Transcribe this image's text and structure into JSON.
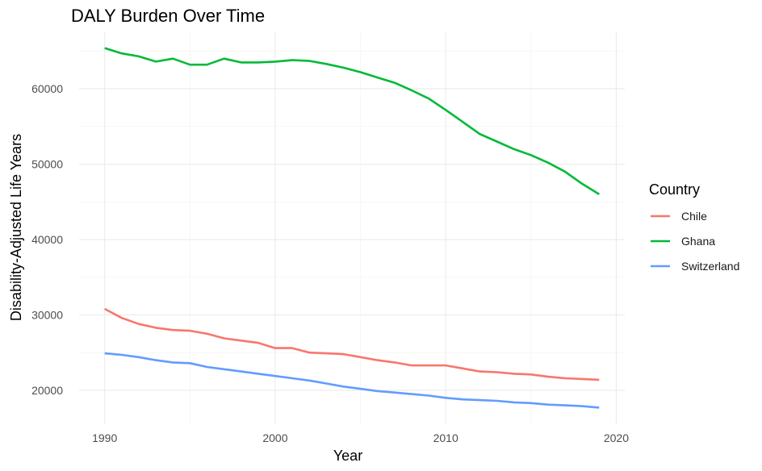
{
  "chart_data": {
    "type": "line",
    "title": "DALY Burden Over Time",
    "xlabel": "Year",
    "ylabel": "Disability-Adjusted Life Years",
    "xlim": [
      1988.5,
      2020.5
    ],
    "ylim": [
      15500,
      67500
    ],
    "x_ticks": [
      1990,
      2000,
      2010,
      2020
    ],
    "x_minor_ticks": [
      1995,
      2005,
      2015
    ],
    "y_ticks": [
      20000,
      30000,
      40000,
      50000,
      60000
    ],
    "y_minor_ticks": [
      25000,
      35000,
      45000,
      55000,
      65000
    ],
    "x_tick_labels": [
      "1990",
      "2000",
      "2010",
      "2020"
    ],
    "y_tick_labels": [
      "20000",
      "30000",
      "40000",
      "50000",
      "60000"
    ],
    "grid": true,
    "legend": {
      "title": "Country",
      "placement": "right"
    },
    "x": [
      1990,
      1991,
      1992,
      1993,
      1994,
      1995,
      1996,
      1997,
      1998,
      1999,
      2000,
      2001,
      2002,
      2003,
      2004,
      2005,
      2006,
      2007,
      2008,
      2009,
      2010,
      2011,
      2012,
      2013,
      2014,
      2015,
      2016,
      2017,
      2018,
      2019
    ],
    "series": [
      {
        "name": "Chile",
        "color": "#f8766d",
        "values": [
          30800,
          29600,
          28800,
          28300,
          28000,
          27900,
          27500,
          26900,
          26600,
          26300,
          25600,
          25600,
          25000,
          24900,
          24800,
          24400,
          24000,
          23700,
          23300,
          23300,
          23300,
          22900,
          22500,
          22400,
          22200,
          22100,
          21800,
          21600,
          21500,
          21400
        ]
      },
      {
        "name": "Ghana",
        "color": "#00ba38",
        "values": [
          65400,
          64700,
          64300,
          63600,
          64000,
          63200,
          63200,
          64000,
          63500,
          63500,
          63600,
          63800,
          63700,
          63300,
          62800,
          62200,
          61500,
          60800,
          59800,
          58700,
          57200,
          55600,
          54000,
          53000,
          52000,
          51200,
          50200,
          49000,
          47400,
          46000
        ]
      },
      {
        "name": "Switzerland",
        "color": "#619cff",
        "values": [
          24900,
          24700,
          24400,
          24000,
          23700,
          23600,
          23100,
          22800,
          22500,
          22200,
          21900,
          21600,
          21300,
          20900,
          20500,
          20200,
          19900,
          19700,
          19500,
          19300,
          19000,
          18800,
          18700,
          18600,
          18400,
          18300,
          18100,
          18000,
          17900,
          17700
        ]
      }
    ]
  }
}
